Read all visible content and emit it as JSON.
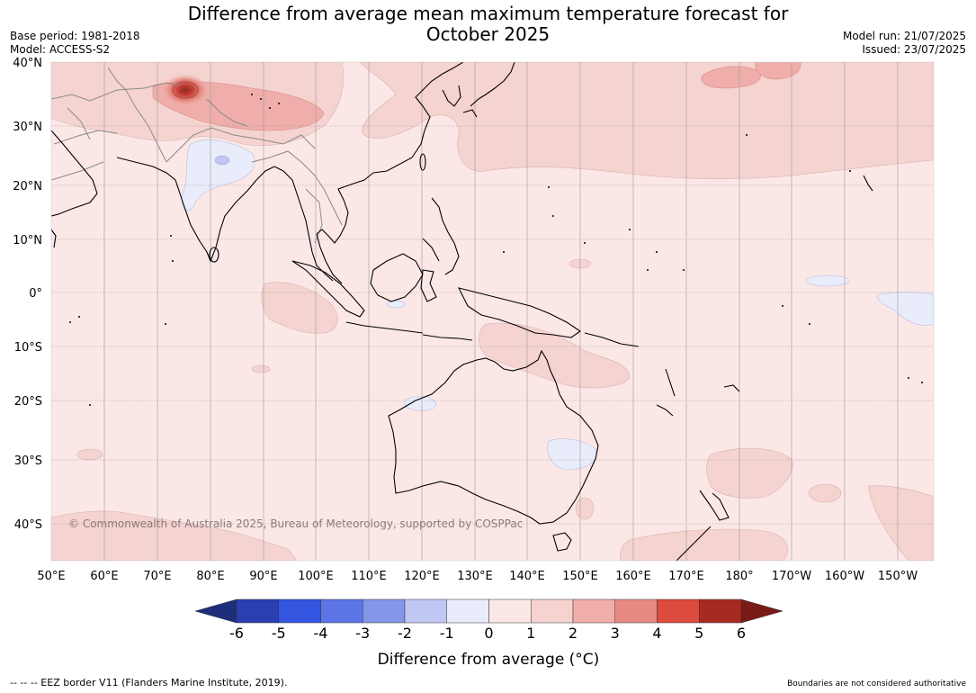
{
  "title_line1": "Difference from average mean maximum temperature forecast for",
  "title_line2": "October 2025",
  "meta_left": {
    "base_period": "Base period: 1981-2018",
    "model": "Model: ACCESS-S2"
  },
  "meta_right": {
    "model_run": "Model run: 21/07/2025",
    "issued": "Issued: 23/07/2025"
  },
  "copyright": "© Commonwealth of Australia 2025, Bureau of Meteorology, supported by COSPPac",
  "lat_labels": [
    "40°N",
    "30°N",
    "20°N",
    "10°N",
    "0°",
    "10°S",
    "20°S",
    "30°S",
    "40°S"
  ],
  "lon_labels": [
    "50°E",
    "60°E",
    "70°E",
    "80°E",
    "90°E",
    "100°E",
    "110°E",
    "120°E",
    "130°E",
    "140°E",
    "150°E",
    "160°E",
    "170°E",
    "180°",
    "170°W",
    "160°W",
    "150°W"
  ],
  "colorbar": {
    "title": "Difference from average (°C)",
    "tick_labels": [
      "-6",
      "-5",
      "-4",
      "-3",
      "-2",
      "-1",
      "0",
      "1",
      "2",
      "3",
      "4",
      "5",
      "6"
    ],
    "colors": [
      "#1f2e7a",
      "#2a3fb0",
      "#3355e0",
      "#5b74e6",
      "#8596ea",
      "#c0c7f2",
      "#e9ecfa",
      "#fbe8e6",
      "#f5d3d0",
      "#efaeaa",
      "#e88a82",
      "#dd4b3e",
      "#a72a22",
      "#7a1a16"
    ]
  },
  "footer_left": "--  --  -- EEZ border V11 (Flanders Marine Institute, 2019).",
  "footer_right": "Boundaries are not considered authoritative"
}
